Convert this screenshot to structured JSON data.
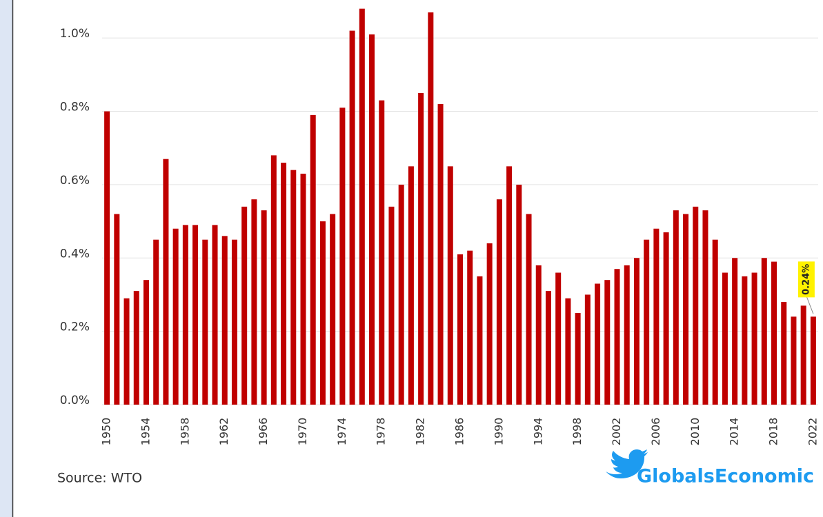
{
  "chart_data": {
    "type": "bar",
    "categories": [
      "1950",
      null,
      null,
      null,
      "1954",
      null,
      null,
      null,
      "1958",
      null,
      null,
      null,
      "1962",
      null,
      null,
      null,
      "1966",
      null,
      null,
      null,
      "1970",
      null,
      null,
      null,
      "1974",
      null,
      null,
      null,
      "1978",
      null,
      null,
      null,
      "1982",
      null,
      null,
      null,
      "1986",
      null,
      null,
      null,
      "1990",
      null,
      null,
      null,
      "1994",
      null,
      null,
      null,
      "1998",
      null,
      null,
      null,
      "2002",
      null,
      null,
      null,
      "2006",
      null,
      null,
      null,
      "2010",
      null,
      null,
      null,
      "2014",
      null,
      null,
      null,
      "2018",
      null,
      null,
      null,
      "2022"
    ],
    "values": [
      0.8,
      0.52,
      0.29,
      0.31,
      0.34,
      0.45,
      0.67,
      0.48,
      0.49,
      0.49,
      0.45,
      0.49,
      0.46,
      0.45,
      0.54,
      0.56,
      0.53,
      0.68,
      0.66,
      0.64,
      0.63,
      0.79,
      0.5,
      0.52,
      0.81,
      1.02,
      1.08,
      1.01,
      0.83,
      0.54,
      0.6,
      0.65,
      0.85,
      1.07,
      0.82,
      0.65,
      0.41,
      0.42,
      0.35,
      0.44,
      0.56,
      0.65,
      0.6,
      0.52,
      0.38,
      0.31,
      0.36,
      0.29,
      0.25,
      0.3,
      0.33,
      0.34,
      0.37,
      0.38,
      0.4,
      0.45,
      0.48,
      0.47,
      0.53,
      0.52,
      0.54,
      0.53,
      0.45,
      0.36,
      0.4,
      0.35,
      0.36,
      0.4,
      0.39,
      0.28,
      0.24,
      0.27,
      0.24
    ],
    "value_labels": [
      null,
      null,
      null,
      null,
      null,
      null,
      null,
      null,
      null,
      null,
      null,
      null,
      null,
      null,
      null,
      null,
      null,
      null,
      null,
      null,
      null,
      null,
      null,
      null,
      null,
      null,
      null,
      null,
      null,
      null,
      null,
      null,
      null,
      null,
      null,
      null,
      null,
      null,
      null,
      null,
      null,
      null,
      null,
      null,
      null,
      null,
      null,
      null,
      null,
      null,
      null,
      null,
      null,
      null,
      null,
      null,
      null,
      null,
      null,
      null,
      null,
      null,
      null,
      null,
      null,
      null,
      null,
      null,
      null,
      null,
      null,
      null,
      "0.24%"
    ],
    "color": "#c00000",
    "ylim": [
      0,
      1.1
    ],
    "yticks": [
      {
        "value": 0,
        "label": "0.0%"
      },
      {
        "value": 0.2,
        "label": "0.2%"
      },
      {
        "value": 0.4,
        "label": "0.4%"
      },
      {
        "value": 0.6,
        "label": "0.6%"
      },
      {
        "value": 0.8,
        "label": "0.8%"
      },
      {
        "value": 1.0,
        "label": "1.0%"
      }
    ],
    "grid": true,
    "source": "Source: WTO",
    "brand": "GlobalsEconomic"
  }
}
